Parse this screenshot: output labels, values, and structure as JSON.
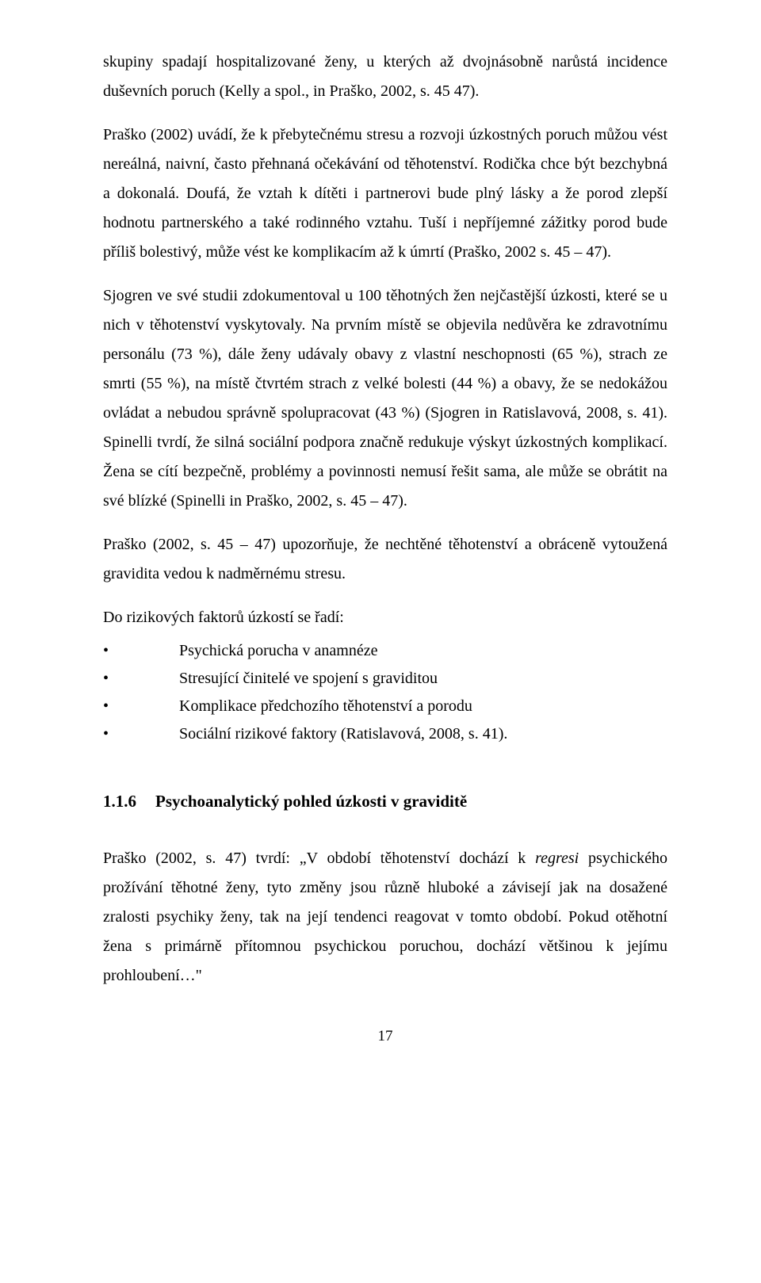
{
  "p1": "skupiny spadají hospitalizované ženy, u kterých až dvojnásobně narůstá incidence duševních poruch (Kelly a spol., in Praško, 2002, s. 45 47).",
  "p2": "Praško (2002) uvádí, že k přebytečnému stresu a rozvoji úzkostných poruch můžou vést nereálná, naivní, často přehnaná očekávání od těhotenství. Rodička chce být bezchybná a dokonalá. Doufá, že vztah k dítěti i partnerovi bude plný lásky a že porod zlepší hodnotu partnerského a také rodinného vztahu. Tuší i nepříjemné zážitky porod bude příliš bolestivý, může vést ke komplikacím až k úmrtí (Praško, 2002 s. 45 – 47).",
  "p3": "Sjogren ve své studii zdokumentoval u 100 těhotných žen nejčastější úzkosti, které se u nich v těhotenství vyskytovaly. Na prvním místě se objevila nedůvěra ke zdravotnímu personálu (73 %), dále ženy udávaly obavy z vlastní neschopnosti (65 %), strach ze smrti (55 %), na místě čtvrtém strach z velké bolesti (44 %) a obavy, že se nedokážou ovládat a nebudou správně spolupracovat (43 %) (Sjogren in Ratislavová, 2008, s. 41). Spinelli tvrdí, že silná sociální podpora značně redukuje výskyt úzkostných komplikací. Žena se cítí bezpečně, problémy a povinnosti nemusí řešit sama, ale může se obrátit na své blízké (Spinelli in Praško, 2002, s. 45 – 47).",
  "p4": "Praško (2002, s. 45 – 47) upozorňuje, že nechtěné těhotenství a obráceně vytoužená gravidita vedou k nadměrnému stresu.",
  "p5": "Do rizikových faktorů úzkostí se řadí:",
  "bullets": {
    "b1": "Psychická porucha v anamnéze",
    "b2": "Stresující činitelé ve spojení s graviditou",
    "b3": "Komplikace předchozího těhotenství a porodu",
    "b4": "Sociální rizikové faktory (Ratislavová, 2008, s. 41)."
  },
  "heading": {
    "num": "1.1.6",
    "text": "Psychoanalytický pohled úzkosti v graviditě"
  },
  "p6_a": "Praško (2002, s. 47) tvrdí: „V období těhotenství dochází k ",
  "p6_i": "regresi",
  "p6_b": " psychického prožívání těhotné ženy, tyto změny jsou různě hluboké a závisejí jak na dosažené zralosti psychiky ženy, tak na její tendenci reagovat v tomto období. Pokud otěhotní žena s primárně přítomnou psychickou poruchou, dochází většinou k jejímu prohloubení…\"",
  "pagenum": "17"
}
